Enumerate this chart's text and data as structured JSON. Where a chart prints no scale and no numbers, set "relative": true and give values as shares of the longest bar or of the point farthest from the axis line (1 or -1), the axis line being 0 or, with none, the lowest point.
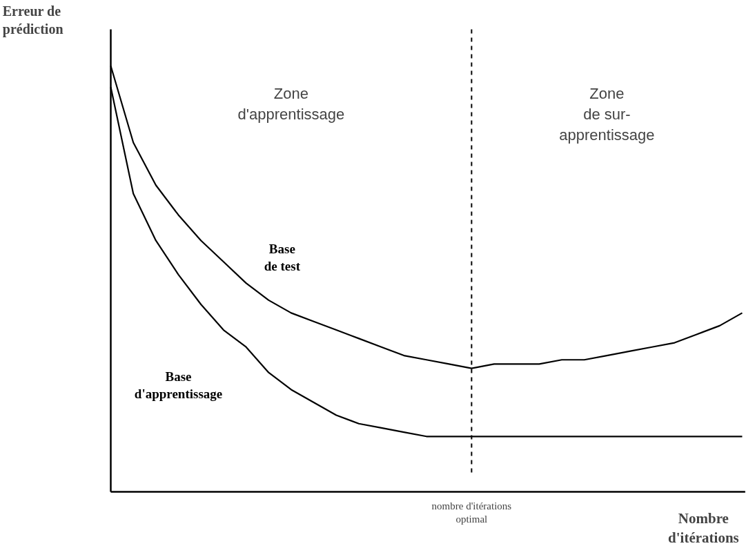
{
  "chart_data": {
    "type": "line",
    "relative": true,
    "ylabel": "Erreur de prédiction",
    "xlabel": "Nombre d'itérations",
    "categories": [
      null,
      null,
      null,
      null,
      null,
      null,
      null,
      null,
      null,
      null,
      null,
      null,
      null,
      null,
      null,
      null,
      null,
      null,
      null,
      null,
      null,
      null,
      null,
      null,
      null,
      null,
      null,
      null,
      null
    ],
    "series": [
      {
        "name": "Base de test",
        "color": "#000000",
        "values": [
          1.0,
          0.82,
          0.72,
          0.65,
          0.59,
          0.54,
          0.49,
          0.45,
          0.42,
          0.4,
          0.38,
          0.36,
          0.34,
          0.32,
          0.31,
          0.3,
          0.29,
          0.3,
          0.3,
          0.3,
          0.31,
          0.31,
          0.32,
          0.33,
          0.34,
          0.35,
          0.37,
          0.39,
          0.42
        ]
      },
      {
        "name": "Base d'apprentissage",
        "color": "#000000",
        "values": [
          0.95,
          0.7,
          0.59,
          0.51,
          0.44,
          0.38,
          0.34,
          0.28,
          0.24,
          0.21,
          0.18,
          0.16,
          0.15,
          0.14,
          0.13,
          0.13,
          0.13,
          0.13,
          0.13,
          0.13,
          0.13,
          0.13,
          0.13,
          0.13,
          0.13,
          0.13,
          0.13,
          0.13,
          0.13
        ]
      }
    ],
    "annotations": [
      "Zone d'apprentissage",
      "Zone de sur-apprentissage",
      "nombre d'itérations optimal"
    ],
    "line_style": "solid",
    "marker": "none",
    "grid": false
  }
}
